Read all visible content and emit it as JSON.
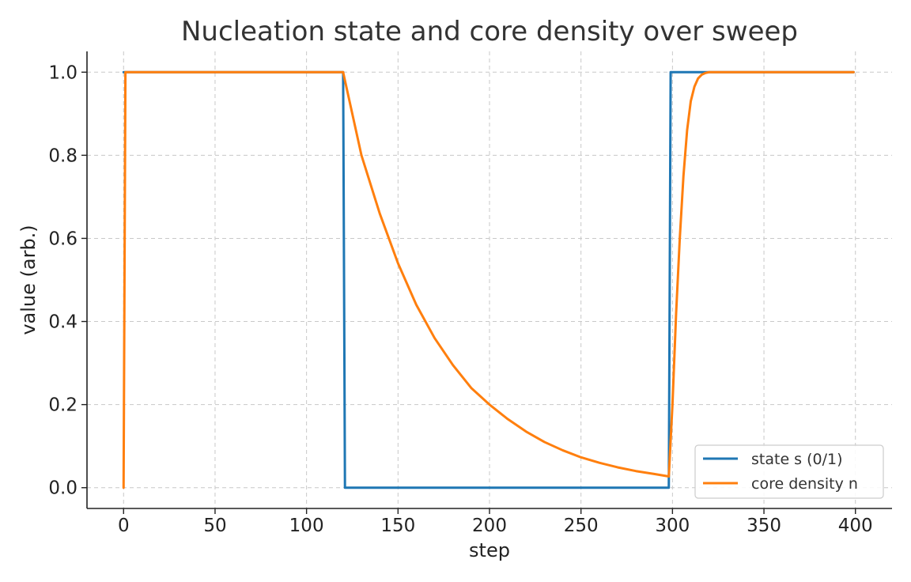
{
  "chart_data": {
    "type": "line",
    "title": "Nucleation state and core density over sweep",
    "xlabel": "step",
    "ylabel": "value (arb.)",
    "xlim": [
      -20,
      420
    ],
    "ylim": [
      -0.05,
      1.05
    ],
    "xticks": [
      0,
      50,
      100,
      150,
      200,
      250,
      300,
      350,
      400
    ],
    "yticks": [
      0.0,
      0.2,
      0.4,
      0.6,
      0.8,
      1.0
    ],
    "xtick_labels": [
      "0",
      "50",
      "100",
      "150",
      "200",
      "250",
      "300",
      "350",
      "400"
    ],
    "ytick_labels": [
      "0.0",
      "0.2",
      "0.4",
      "0.6",
      "0.8",
      "1.0"
    ],
    "grid": true,
    "legend_position": "lower-right",
    "series": [
      {
        "name": "state s (0/1)",
        "color": "#1f77b4",
        "x": [
          0,
          120,
          121,
          298,
          299,
          399
        ],
        "y": [
          1.0,
          1.0,
          0.0,
          0.0,
          1.0,
          1.0
        ]
      },
      {
        "name": "core density n",
        "color": "#ff7f0e",
        "x": [
          0,
          1,
          120,
          130,
          140,
          150,
          160,
          170,
          180,
          190,
          200,
          210,
          220,
          230,
          240,
          250,
          260,
          270,
          280,
          290,
          298,
          300,
          302,
          304,
          306,
          308,
          310,
          312,
          314,
          316,
          318,
          320,
          325,
          330,
          399
        ],
        "y": [
          0.0,
          1.0,
          1.0,
          0.8,
          0.66,
          0.54,
          0.44,
          0.36,
          0.295,
          0.24,
          0.2,
          0.165,
          0.135,
          0.11,
          0.09,
          0.073,
          0.06,
          0.049,
          0.04,
          0.033,
          0.027,
          0.2,
          0.42,
          0.6,
          0.75,
          0.86,
          0.93,
          0.965,
          0.985,
          0.994,
          0.998,
          1.0,
          1.0,
          1.0,
          1.0
        ]
      }
    ]
  }
}
